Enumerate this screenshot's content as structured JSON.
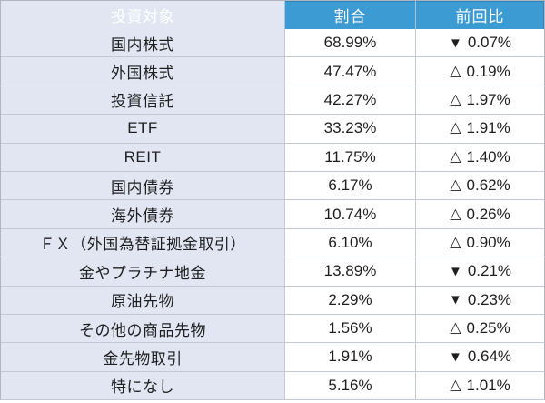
{
  "colors": {
    "header_bg": "#3d9bd3",
    "header_text": "#ffffff",
    "label_col_bg": "#e2e6f3",
    "value_col_bg": "#ffffff",
    "border": "#c3c9d3",
    "text": "#1f1f1f"
  },
  "table": {
    "columns": [
      {
        "label": "投資対象"
      },
      {
        "label": "割合"
      },
      {
        "label": "前回比"
      }
    ],
    "rows": [
      {
        "label": "国内株式",
        "ratio": "68.99%",
        "change_symbol": "▼",
        "change_value": "0.07%",
        "change_dir": "down"
      },
      {
        "label": "外国株式",
        "ratio": "47.47%",
        "change_symbol": "△",
        "change_value": "0.19%",
        "change_dir": "up"
      },
      {
        "label": "投資信託",
        "ratio": "42.27%",
        "change_symbol": "△",
        "change_value": "1.97%",
        "change_dir": "up"
      },
      {
        "label": "ETF",
        "ratio": "33.23%",
        "change_symbol": "△",
        "change_value": "1.91%",
        "change_dir": "up"
      },
      {
        "label": "REIT",
        "ratio": "11.75%",
        "change_symbol": "△",
        "change_value": "1.40%",
        "change_dir": "up"
      },
      {
        "label": "国内債券",
        "ratio": "6.17%",
        "change_symbol": "△",
        "change_value": "0.62%",
        "change_dir": "up"
      },
      {
        "label": "海外債券",
        "ratio": "10.74%",
        "change_symbol": "△",
        "change_value": "0.26%",
        "change_dir": "up"
      },
      {
        "label": "ＦＸ（外国為替証拠金取引）",
        "ratio": "6.10%",
        "change_symbol": "△",
        "change_value": "0.90%",
        "change_dir": "up"
      },
      {
        "label": "金やプラチナ地金",
        "ratio": "13.89%",
        "change_symbol": "▼",
        "change_value": "0.21%",
        "change_dir": "down"
      },
      {
        "label": "原油先物",
        "ratio": "2.29%",
        "change_symbol": "▼",
        "change_value": "0.23%",
        "change_dir": "down"
      },
      {
        "label": "その他の商品先物",
        "ratio": "1.56%",
        "change_symbol": "△",
        "change_value": "0.25%",
        "change_dir": "up"
      },
      {
        "label": "金先物取引",
        "ratio": "1.91%",
        "change_symbol": "▼",
        "change_value": "0.64%",
        "change_dir": "down"
      },
      {
        "label": "特になし",
        "ratio": "5.16%",
        "change_symbol": "△",
        "change_value": "1.01%",
        "change_dir": "up"
      }
    ]
  },
  "chart_data": {
    "type": "table",
    "columns": [
      "投資対象",
      "割合",
      "前回比"
    ],
    "rows": [
      [
        "国内株式",
        "68.99%",
        "▼ 0.07%"
      ],
      [
        "外国株式",
        "47.47%",
        "△ 0.19%"
      ],
      [
        "投資信託",
        "42.27%",
        "△ 1.97%"
      ],
      [
        "ETF",
        "33.23%",
        "△ 1.91%"
      ],
      [
        "REIT",
        "11.75%",
        "△ 1.40%"
      ],
      [
        "国内債券",
        "6.17%",
        "△ 0.62%"
      ],
      [
        "海外債券",
        "10.74%",
        "△ 0.26%"
      ],
      [
        "ＦＸ（外国為替証拠金取引）",
        "6.10%",
        "△ 0.90%"
      ],
      [
        "金やプラチナ地金",
        "13.89%",
        "▼ 0.21%"
      ],
      [
        "原油先物",
        "2.29%",
        "▼ 0.23%"
      ],
      [
        "その他の商品先物",
        "1.56%",
        "△ 0.25%"
      ],
      [
        "金先物取引",
        "1.91%",
        "▼ 0.64%"
      ],
      [
        "特になし",
        "5.16%",
        "△ 1.01%"
      ]
    ]
  }
}
